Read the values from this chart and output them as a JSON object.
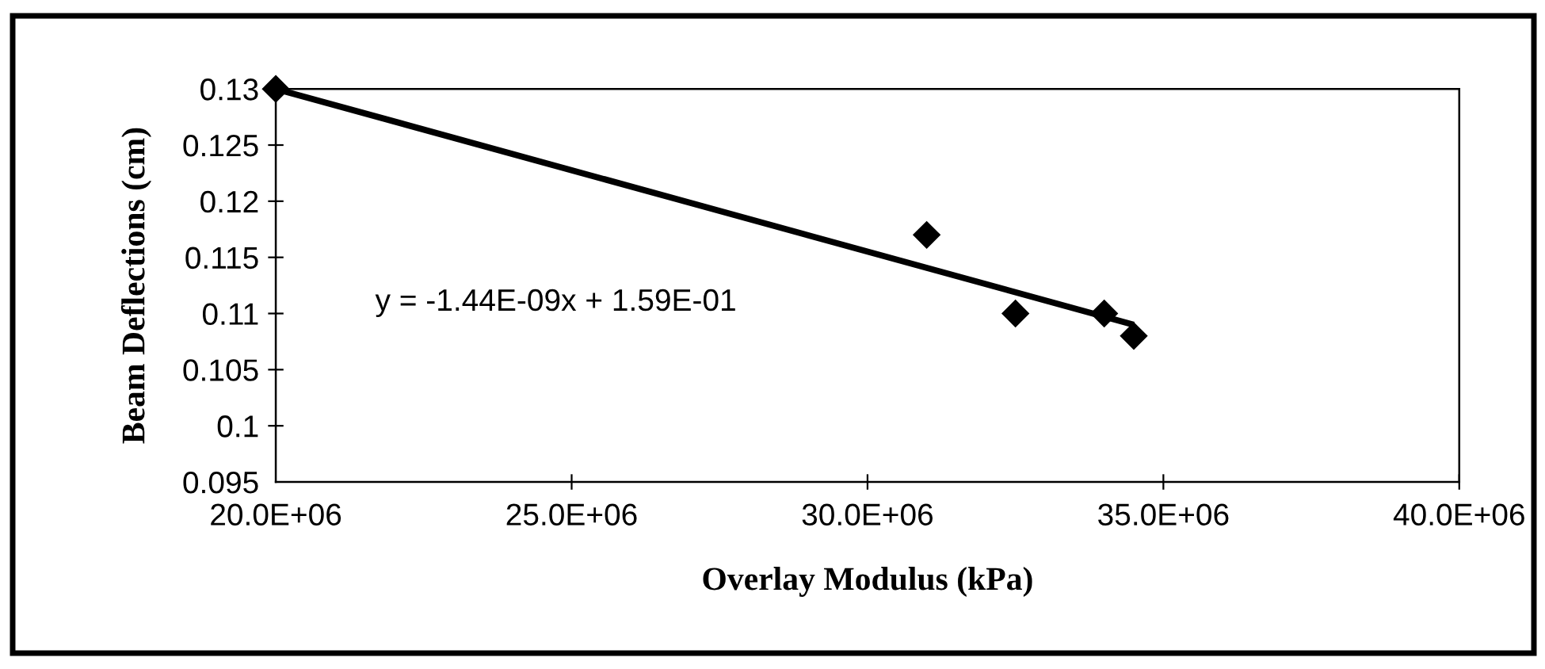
{
  "chart_data": {
    "type": "scatter",
    "xlabel": "Overlay Modulus (kPa)",
    "ylabel": "Beam Deflections (cm)",
    "annotations": [
      "y = -1.44E-09x + 1.59E-01"
    ],
    "xlim": [
      20000000,
      40000000
    ],
    "xticks": [
      {
        "value": 20000000,
        "label": "20.0E+06"
      },
      {
        "value": 25000000,
        "label": "25.0E+06"
      },
      {
        "value": 30000000,
        "label": "30.0E+06"
      },
      {
        "value": 35000000,
        "label": "35.0E+06"
      },
      {
        "value": 40000000,
        "label": "40.0E+06"
      }
    ],
    "ylim": [
      0.095,
      0.13
    ],
    "yticks": [
      0.095,
      0.1,
      0.105,
      0.11,
      0.115,
      0.12,
      0.125,
      0.13
    ],
    "marker": "diamond",
    "grid": false,
    "legend": false,
    "series": [
      {
        "color": "#000000",
        "x": [
          20000000,
          31000000,
          32500000,
          34000000,
          34500000
        ],
        "values": [
          0.13,
          0.117,
          0.11,
          0.11,
          0.108
        ]
      },
      {
        "type": "line",
        "color": "#000000",
        "marker": "none",
        "line_style": "solid",
        "x": [
          20000000,
          34500000
        ],
        "values": [
          0.13,
          0.109
        ]
      }
    ]
  }
}
